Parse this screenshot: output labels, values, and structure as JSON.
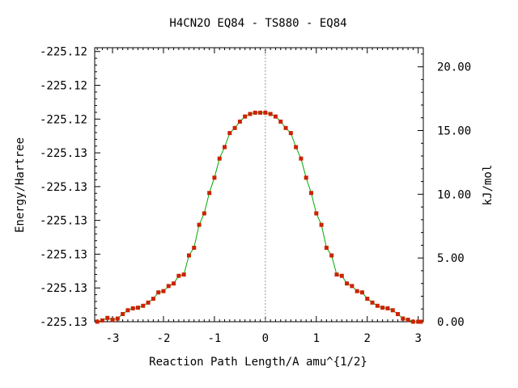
{
  "chart_data": {
    "type": "line",
    "title": "H4CN2O   EQ84 - TS880 - EQ84",
    "xlabel": "Reaction Path Length/A amu^{1/2}",
    "ylabel_left": "Energy/Hartree",
    "ylabel_right": "kJ/mol",
    "xlim": [
      -3.35,
      3.1
    ],
    "ylim_kjmol": [
      0,
      21.5
    ],
    "x_ticks": [
      -3,
      -2,
      -1,
      0,
      1,
      2,
      3
    ],
    "x_tick_labels": [
      "-3",
      "-2",
      "-1",
      "0",
      "1",
      "2",
      "3"
    ],
    "left_ticks_kjmol": [
      0.0,
      2.65,
      5.3,
      7.95,
      10.6,
      13.25,
      15.9,
      18.55,
      21.2
    ],
    "left_tick_labels": [
      "-225.13",
      "-225.13",
      "-225.13",
      "-225.13",
      "-225.13",
      "-225.13",
      "-225.12",
      "-225.12",
      "-225.12"
    ],
    "right_ticks": [
      0,
      5,
      10,
      15,
      20
    ],
    "right_tick_labels": [
      "0.00",
      "5.00",
      "10.00",
      "15.00",
      "20.00"
    ],
    "grid": false,
    "ts_marker_x": 0,
    "series": [
      {
        "line_color": "#00aa00",
        "marker_color": "#cc2200",
        "x": [
          -3.3,
          -3.2,
          -3.1,
          -3.0,
          -2.9,
          -2.8,
          -2.7,
          -2.6,
          -2.5,
          -2.4,
          -2.3,
          -2.2,
          -2.1,
          -2.0,
          -1.9,
          -1.8,
          -1.7,
          -1.6,
          -1.5,
          -1.4,
          -1.3,
          -1.2,
          -1.1,
          -1.0,
          -0.9,
          -0.8,
          -0.7,
          -0.6,
          -0.5,
          -0.4,
          -0.3,
          -0.2,
          -0.1,
          0.0,
          0.1,
          0.2,
          0.3,
          0.4,
          0.5,
          0.6,
          0.7,
          0.8,
          0.9,
          1.0,
          1.1,
          1.2,
          1.3,
          1.4,
          1.5,
          1.6,
          1.7,
          1.8,
          1.9,
          2.0,
          2.1,
          2.2,
          2.3,
          2.4,
          2.5,
          2.6,
          2.7,
          2.8,
          2.9,
          3.0,
          3.05
        ],
        "y_kjmol": [
          0.0,
          0.1,
          0.3,
          0.15,
          0.25,
          0.6,
          0.9,
          1.05,
          1.1,
          1.25,
          1.5,
          1.8,
          2.3,
          2.4,
          2.8,
          3.0,
          3.6,
          3.7,
          5.2,
          5.8,
          7.6,
          8.5,
          10.1,
          11.3,
          12.8,
          13.7,
          14.8,
          15.2,
          15.7,
          16.1,
          16.3,
          16.4,
          16.4,
          16.4,
          16.3,
          16.1,
          15.7,
          15.2,
          14.8,
          13.7,
          12.8,
          11.3,
          10.1,
          8.5,
          7.6,
          5.8,
          5.2,
          3.7,
          3.6,
          3.0,
          2.8,
          2.4,
          2.3,
          1.8,
          1.5,
          1.25,
          1.1,
          1.05,
          0.9,
          0.6,
          0.25,
          0.15,
          0.0,
          0.0,
          0.0
        ]
      }
    ]
  }
}
